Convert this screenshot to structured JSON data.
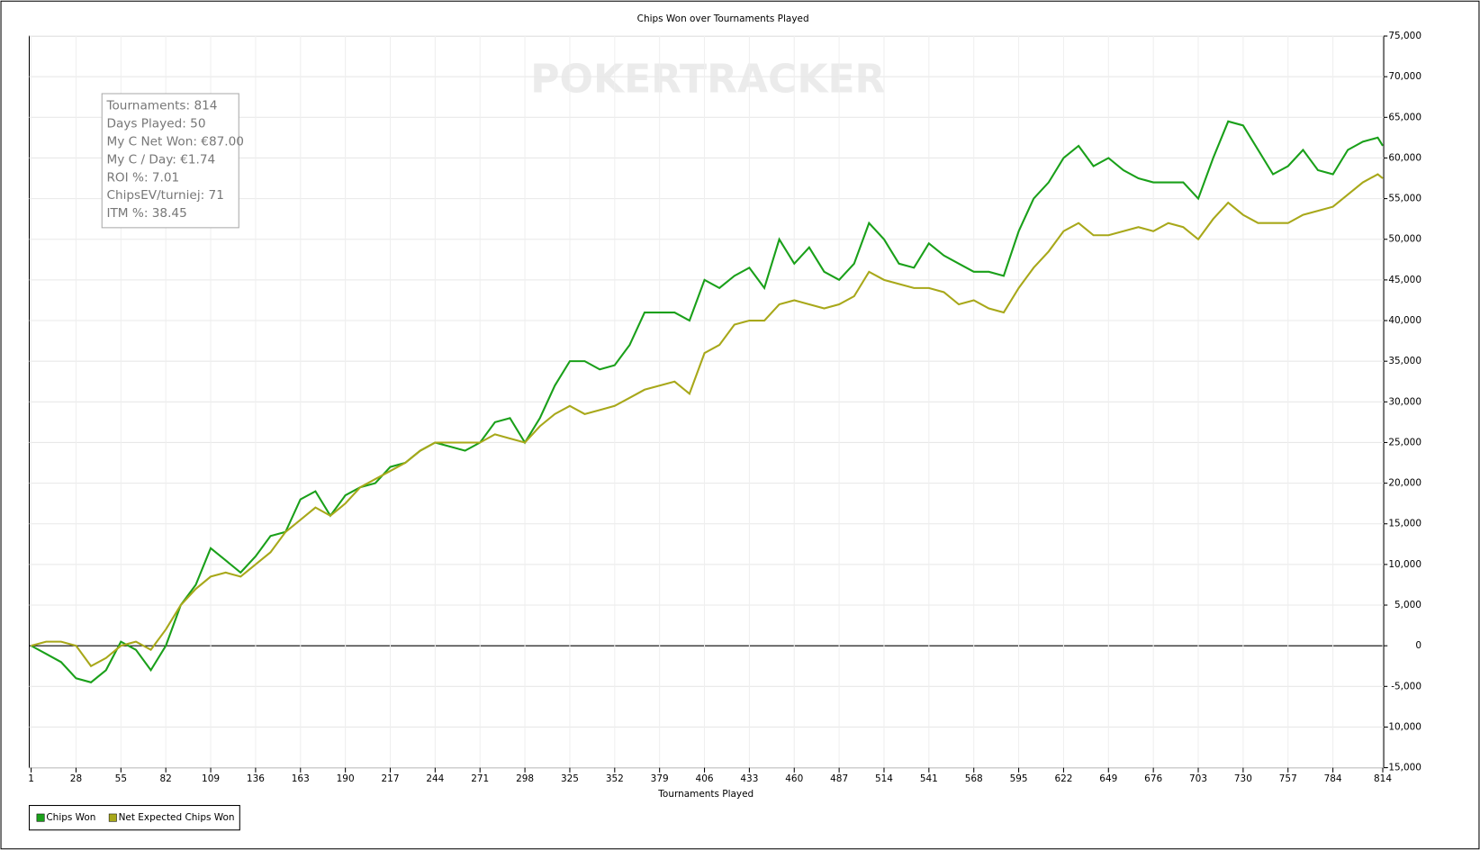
{
  "chart_data": {
    "type": "line",
    "title": "Chips Won over Tournaments Played",
    "x_label": "Tournaments Played",
    "watermark": "POKERTRACKER",
    "stats": [
      "Tournaments: 814",
      "Days Played: 50",
      "My C Net Won: €87.00",
      "My C / Day: €1.74",
      "ROI %: 7.01",
      "ChipsEV/turniej: 71",
      "ITM %: 38.45"
    ],
    "x": [
      1,
      10,
      19,
      28,
      37,
      46,
      55,
      64,
      73,
      82,
      91,
      100,
      109,
      118,
      127,
      136,
      145,
      154,
      163,
      172,
      181,
      190,
      199,
      208,
      217,
      226,
      235,
      244,
      253,
      262,
      271,
      280,
      289,
      298,
      307,
      316,
      325,
      334,
      343,
      352,
      361,
      370,
      379,
      388,
      397,
      406,
      415,
      424,
      433,
      442,
      451,
      460,
      469,
      478,
      487,
      496,
      505,
      514,
      523,
      532,
      541,
      550,
      559,
      568,
      577,
      586,
      595,
      604,
      613,
      622,
      631,
      640,
      649,
      658,
      667,
      676,
      685,
      694,
      703,
      712,
      721,
      730,
      739,
      748,
      757,
      766,
      775,
      784,
      793,
      802,
      811,
      814
    ],
    "series": [
      {
        "name": "Chips Won",
        "color": "#1aa01a",
        "values": [
          0,
          -1000,
          -2000,
          -4000,
          -4500,
          -3000,
          500,
          -500,
          -3000,
          0,
          5000,
          7500,
          12000,
          10500,
          9000,
          11000,
          13500,
          14000,
          18000,
          19000,
          16000,
          18500,
          19500,
          20000,
          22000,
          22500,
          24000,
          25000,
          24500,
          24000,
          25000,
          27500,
          28000,
          25000,
          28000,
          32000,
          35000,
          35000,
          34000,
          34500,
          37000,
          41000,
          41000,
          41000,
          40000,
          45000,
          44000,
          45500,
          46500,
          44000,
          50000,
          47000,
          49000,
          46000,
          45000,
          47000,
          52000,
          50000,
          47000,
          46500,
          49500,
          48000,
          47000,
          46000,
          46000,
          45500,
          51000,
          55000,
          57000,
          60000,
          61500,
          59000,
          60000,
          58500,
          57500,
          57000,
          57000,
          57000,
          55000,
          60000,
          64500,
          64000,
          61000,
          58000,
          59000,
          61000,
          58500,
          58000,
          61000,
          62000,
          62500,
          61500
        ]
      },
      {
        "name": "Net Expected Chips Won",
        "color": "#a8a81a",
        "values": [
          0,
          500,
          500,
          0,
          -2500,
          -1500,
          0,
          500,
          -500,
          2000,
          5000,
          7000,
          8500,
          9000,
          8500,
          10000,
          11500,
          14000,
          15500,
          17000,
          16000,
          17500,
          19500,
          20500,
          21500,
          22500,
          24000,
          25000,
          25000,
          25000,
          25000,
          26000,
          25500,
          25000,
          27000,
          28500,
          29500,
          28500,
          29000,
          29500,
          30500,
          31500,
          32000,
          32500,
          31000,
          36000,
          37000,
          39500,
          40000,
          40000,
          42000,
          42500,
          42000,
          41500,
          42000,
          43000,
          46000,
          45000,
          44500,
          44000,
          44000,
          43500,
          42000,
          42500,
          41500,
          41000,
          44000,
          46500,
          48500,
          51000,
          52000,
          50500,
          50500,
          51000,
          51500,
          51000,
          52000,
          51500,
          50000,
          52500,
          54500,
          53000,
          52000,
          52000,
          52000,
          53000,
          53500,
          54000,
          55500,
          57000,
          58000,
          57500
        ]
      }
    ],
    "xlim": [
      1,
      814
    ],
    "xticks": [
      1,
      28,
      55,
      82,
      109,
      136,
      163,
      190,
      217,
      244,
      271,
      298,
      325,
      352,
      379,
      406,
      433,
      460,
      487,
      514,
      541,
      568,
      595,
      622,
      649,
      676,
      703,
      730,
      757,
      784,
      814
    ],
    "ylim": [
      -15000,
      75000
    ],
    "yticks": [
      {
        "value": -15000,
        "label": "-15,000"
      },
      {
        "value": -10000,
        "label": "-10,000"
      },
      {
        "value": -5000,
        "label": "-5,000"
      },
      0,
      {
        "value": 5000,
        "label": "5,000"
      },
      {
        "value": 10000,
        "label": "10,000"
      },
      {
        "value": 15000,
        "label": "15,000"
      },
      {
        "value": 20000,
        "label": "20,000"
      },
      {
        "value": 25000,
        "label": "25,000"
      },
      {
        "value": 30000,
        "label": "30,000"
      },
      {
        "value": 35000,
        "label": "35,000"
      },
      {
        "value": 40000,
        "label": "40,000"
      },
      {
        "value": 45000,
        "label": "45,000"
      },
      {
        "value": 50000,
        "label": "50,000"
      },
      {
        "value": 55000,
        "label": "55,000"
      },
      {
        "value": 60000,
        "label": "60,000"
      },
      {
        "value": 65000,
        "label": "65,000"
      },
      {
        "value": 70000,
        "label": "70,000"
      },
      {
        "value": 75000,
        "label": "75,000"
      }
    ],
    "grid": true,
    "legend": "bottom-left"
  }
}
